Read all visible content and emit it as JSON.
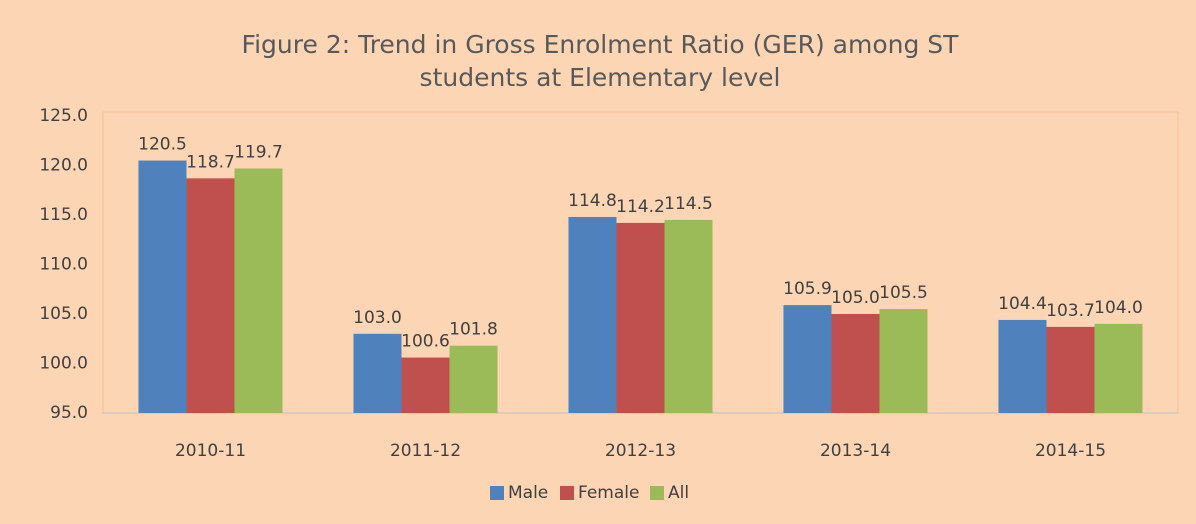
{
  "chart_data": {
    "type": "bar",
    "title": "Figure 2: Trend in Gross Enrolment Ratio (GER) among ST students at Elementary level",
    "categories": [
      "2010-11",
      "2011-12",
      "2012-13",
      "2013-14",
      "2014-15"
    ],
    "series": [
      {
        "name": "Male",
        "color": "#4f81bd",
        "values": [
          120.5,
          103.0,
          114.8,
          105.9,
          104.4
        ],
        "value_labels": [
          "120.5",
          "103.0",
          "114.8",
          "105.9",
          "104.4"
        ]
      },
      {
        "name": "Female",
        "color": "#c0504d",
        "values": [
          118.7,
          100.6,
          114.2,
          105.0,
          103.7
        ],
        "value_labels": [
          "118.7",
          "100.6",
          "114.2",
          "105.0",
          "103.7"
        ]
      },
      {
        "name": "All",
        "color": "#9bbb59",
        "values": [
          119.7,
          101.8,
          114.5,
          105.5,
          104.0
        ],
        "value_labels": [
          "119.7",
          "101.8",
          "114.5",
          "105.5",
          "104.0"
        ]
      }
    ],
    "ylim": [
      95,
      125
    ],
    "yticks": [
      {
        "value": 95,
        "label": "95.0"
      },
      {
        "value": 100,
        "label": "100.0"
      },
      {
        "value": 105,
        "label": "105.0"
      },
      {
        "value": 110,
        "label": "110.0"
      },
      {
        "value": 115,
        "label": "115.0"
      },
      {
        "value": 120,
        "label": "120.0"
      },
      {
        "value": 125,
        "label": "125.0"
      }
    ],
    "grid": false,
    "legend": "bottom"
  }
}
